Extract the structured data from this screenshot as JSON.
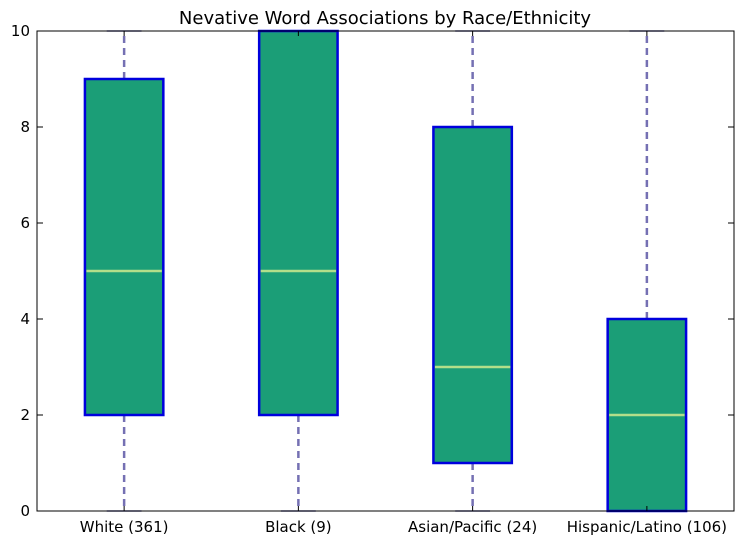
{
  "chart_data": {
    "type": "box",
    "title": "Nevative Word Associations by Race/Ethnicity",
    "categories": [
      "White (361)",
      "Black (9)",
      "Asian/Pacific (24)",
      "Hispanic/Latino (106)"
    ],
    "boxes": [
      {
        "min": 0,
        "q1": 2,
        "median": 5,
        "q3": 9,
        "max": 10
      },
      {
        "min": 0,
        "q1": 2,
        "median": 5,
        "q3": 10,
        "max": 10
      },
      {
        "min": 0,
        "q1": 1,
        "median": 3,
        "q3": 8,
        "max": 10
      },
      {
        "min": 0,
        "q1": 0,
        "median": 2,
        "q3": 4,
        "max": 10
      }
    ],
    "ylim": [
      0,
      10
    ],
    "yticks": [
      0,
      2,
      4,
      6,
      8,
      10
    ],
    "grid": false,
    "colors": {
      "box_fill": "#1b9e77",
      "box_edge": "#0000dd",
      "median": "#b2df8a",
      "whisker": "#7570b3",
      "axis": "#000000"
    }
  }
}
